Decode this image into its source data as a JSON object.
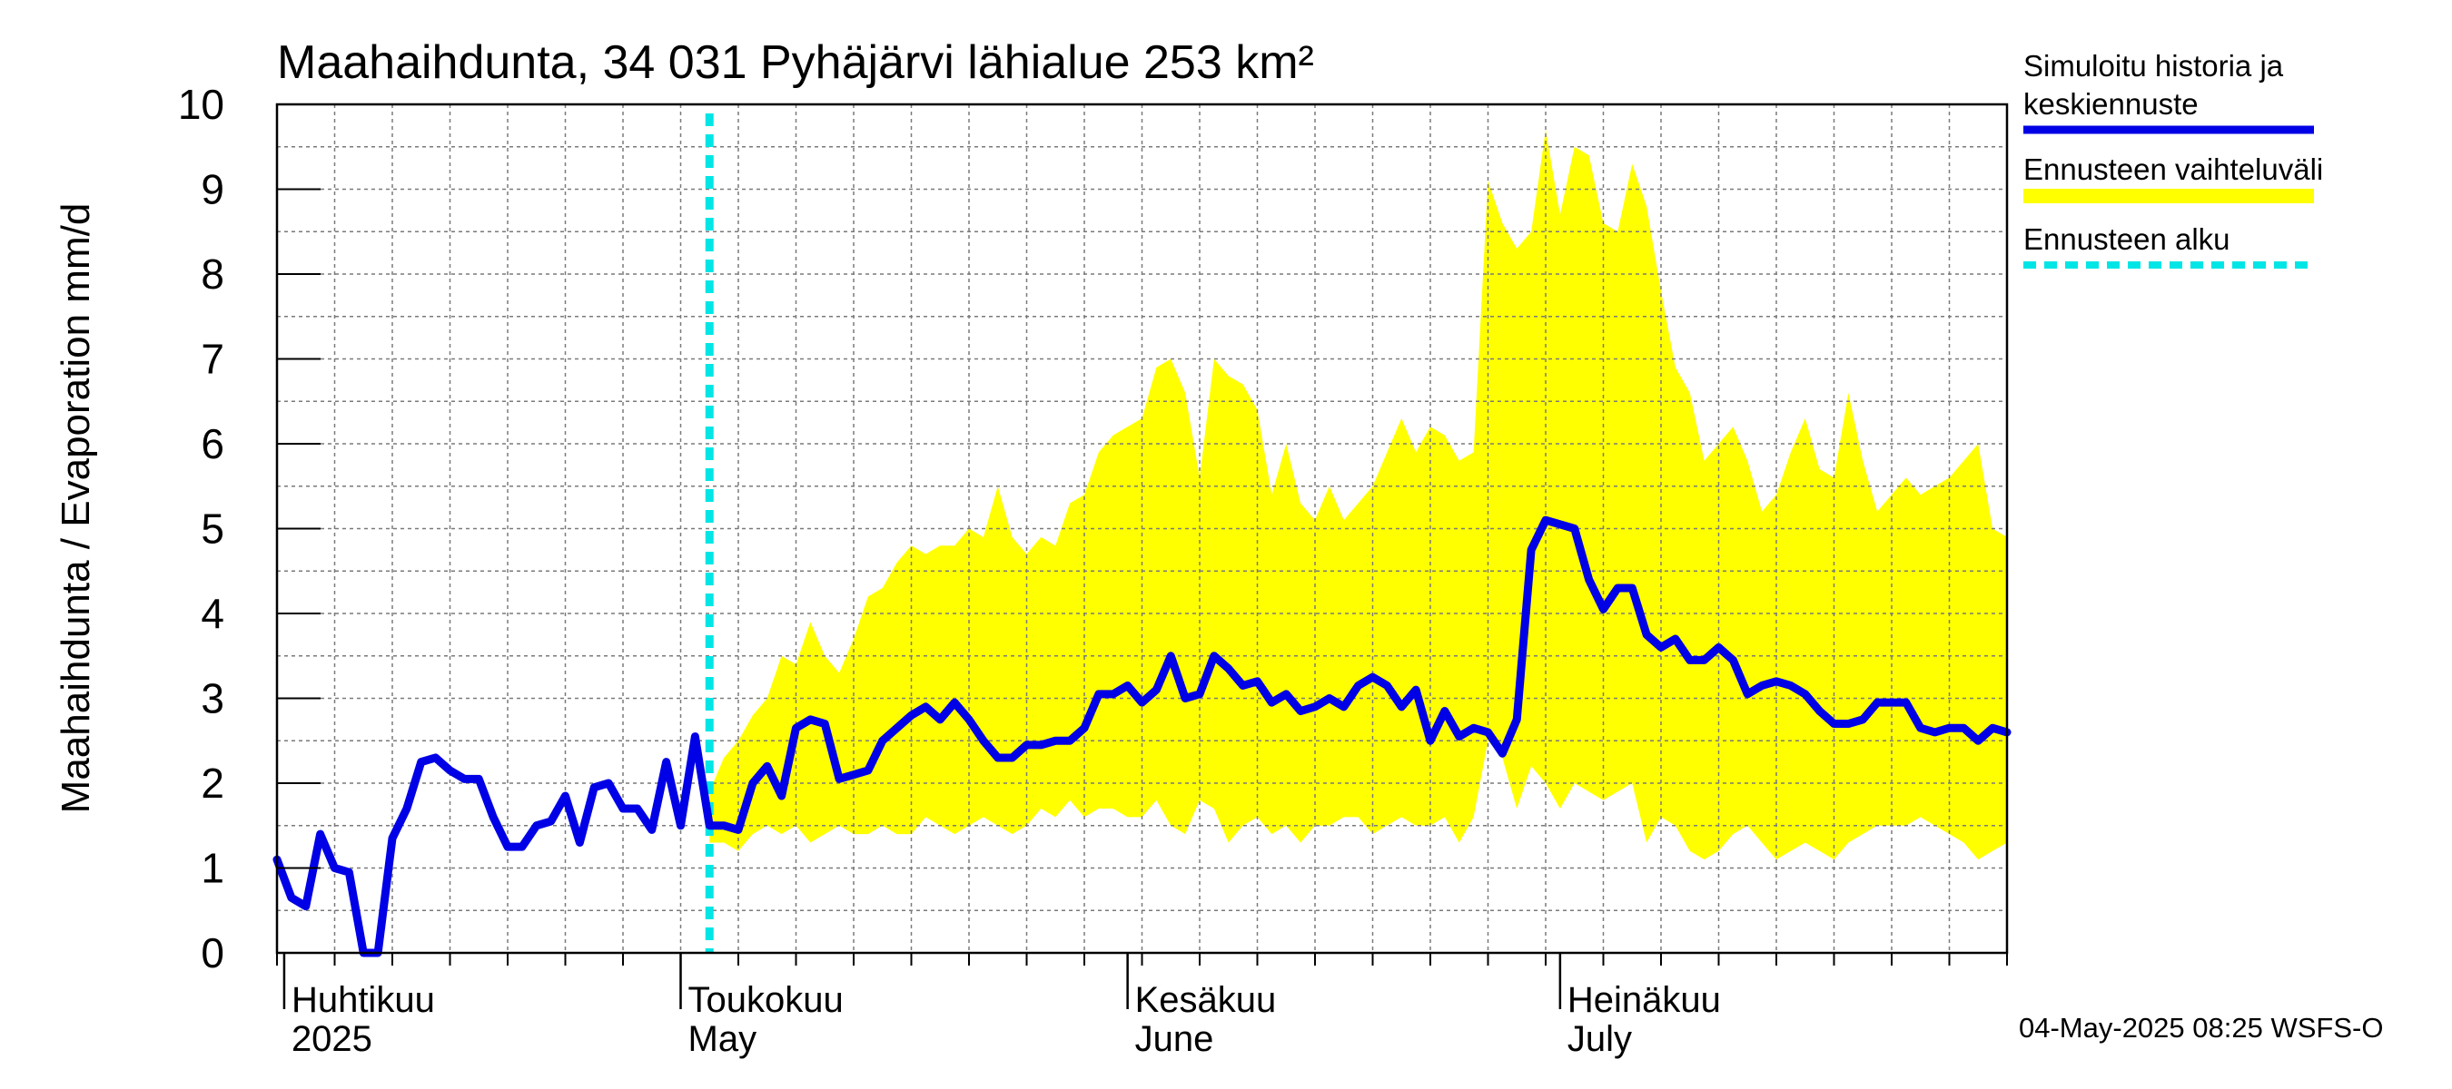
{
  "chart_data": {
    "type": "line",
    "title": "Maahaihdunta, 34 031 Pyhäjärvi lähialue 253 km²",
    "ylabel": "Maahaihdunta / Evaporation   mm/d",
    "ylim": [
      0,
      10
    ],
    "yticks": [
      "0",
      "1",
      "2",
      "3",
      "4",
      "5",
      "6",
      "7",
      "8",
      "9",
      "10"
    ],
    "x_range_days": [
      0,
      120
    ],
    "grid": true,
    "forecast_start_day": 30,
    "month_labels": [
      {
        "day": 0.5,
        "line1": "Huhtikuu",
        "line2": "2025"
      },
      {
        "day": 28,
        "line1": "Toukokuu",
        "line2": "May"
      },
      {
        "day": 59,
        "line1": "Kesäkuu",
        "line2": "June"
      },
      {
        "day": 89,
        "line1": "Heinäkuu",
        "line2": "July"
      }
    ],
    "series": [
      {
        "name": "Simuloitu historia ja keskiennuste",
        "color": "#0000e6",
        "x": [
          0,
          1,
          2,
          3,
          4,
          5,
          6,
          7,
          8,
          9,
          10,
          11,
          12,
          13,
          14,
          15,
          16,
          17,
          18,
          19,
          20,
          21,
          22,
          23,
          24,
          25,
          26,
          27,
          28,
          29,
          30,
          31,
          32,
          33,
          34,
          35,
          36,
          37,
          38,
          39,
          40,
          41,
          42,
          43,
          44,
          45,
          46,
          47,
          48,
          49,
          50,
          51,
          52,
          53,
          54,
          55,
          56,
          57,
          58,
          59,
          60,
          61,
          62,
          63,
          64,
          65,
          66,
          67,
          68,
          69,
          70,
          71,
          72,
          73,
          74,
          75,
          76,
          77,
          78,
          79,
          80,
          81,
          82,
          83,
          84,
          85,
          86,
          87,
          88,
          89,
          90,
          91,
          92,
          93,
          94,
          95,
          96,
          97,
          98,
          99,
          100,
          101,
          102,
          103,
          104,
          105,
          106,
          107,
          108,
          109,
          110,
          111,
          112,
          113,
          114,
          115,
          116,
          117,
          118,
          119,
          120
        ],
        "values": [
          1.1,
          0.65,
          0.55,
          1.4,
          1.0,
          0.95,
          0.0,
          0.0,
          1.35,
          1.7,
          2.25,
          2.3,
          2.15,
          2.05,
          2.05,
          1.6,
          1.25,
          1.25,
          1.5,
          1.55,
          1.85,
          1.3,
          1.95,
          2.0,
          1.7,
          1.7,
          1.45,
          2.25,
          1.5,
          2.55,
          1.5,
          1.5,
          1.45,
          2.0,
          2.2,
          1.85,
          2.65,
          2.75,
          2.7,
          2.05,
          2.1,
          2.15,
          2.5,
          2.65,
          2.8,
          2.9,
          2.75,
          2.95,
          2.75,
          2.5,
          2.3,
          2.3,
          2.45,
          2.45,
          2.5,
          2.5,
          2.65,
          3.05,
          3.05,
          3.15,
          2.95,
          3.1,
          3.5,
          3.0,
          3.05,
          3.5,
          3.35,
          3.15,
          3.2,
          2.95,
          3.05,
          2.85,
          2.9,
          3.0,
          2.9,
          3.15,
          3.25,
          3.15,
          2.9,
          3.1,
          2.5,
          2.85,
          2.55,
          2.65,
          2.6,
          2.35,
          2.75,
          4.75,
          5.1,
          5.05,
          5.0,
          4.4,
          4.05,
          4.3,
          4.3,
          3.75,
          3.6,
          3.7,
          3.45,
          3.45,
          3.6,
          3.45,
          3.05,
          3.15,
          3.2,
          3.15,
          3.05,
          2.85,
          2.7,
          2.7,
          2.75,
          2.95,
          2.95,
          2.95,
          2.65,
          2.6,
          2.65,
          2.65,
          2.5,
          2.65,
          2.6
        ]
      }
    ],
    "band": {
      "name": "Ennusteen vaihteluväli",
      "color": "#ffff00",
      "x": [
        30,
        31,
        32,
        33,
        34,
        35,
        36,
        37,
        38,
        39,
        40,
        41,
        42,
        43,
        44,
        45,
        46,
        47,
        48,
        49,
        50,
        51,
        52,
        53,
        54,
        55,
        56,
        57,
        58,
        59,
        60,
        61,
        62,
        63,
        64,
        65,
        66,
        67,
        68,
        69,
        70,
        71,
        72,
        73,
        74,
        75,
        76,
        77,
        78,
        79,
        80,
        81,
        82,
        83,
        84,
        85,
        86,
        87,
        88,
        89,
        90,
        91,
        92,
        93,
        94,
        95,
        96,
        97,
        98,
        99,
        100,
        101,
        102,
        103,
        104,
        105,
        106,
        107,
        108,
        109,
        110,
        111,
        112,
        113,
        114,
        115,
        116,
        117,
        118,
        119,
        120
      ],
      "upper": [
        1.9,
        2.3,
        2.5,
        2.8,
        3.0,
        3.5,
        3.4,
        3.9,
        3.5,
        3.3,
        3.7,
        4.2,
        4.3,
        4.6,
        4.8,
        4.7,
        4.8,
        4.8,
        5.0,
        4.9,
        5.5,
        4.9,
        4.7,
        4.9,
        4.8,
        5.3,
        5.4,
        5.9,
        6.1,
        6.2,
        6.3,
        6.9,
        7.0,
        6.6,
        5.6,
        7.0,
        6.8,
        6.7,
        6.4,
        5.4,
        6.0,
        5.3,
        5.1,
        5.5,
        5.1,
        5.3,
        5.5,
        5.9,
        6.3,
        5.9,
        6.2,
        6.1,
        5.8,
        5.9,
        9.1,
        8.6,
        8.3,
        8.5,
        9.7,
        8.7,
        9.5,
        9.4,
        8.6,
        8.5,
        9.3,
        8.8,
        7.8,
        6.9,
        6.6,
        5.8,
        6.0,
        6.2,
        5.8,
        5.2,
        5.4,
        5.9,
        6.3,
        5.7,
        5.6,
        6.6,
        5.8,
        5.2,
        5.4,
        5.6,
        5.4,
        5.5,
        5.6,
        5.8,
        6.0,
        5.0,
        4.9
      ],
      "lower": [
        1.3,
        1.3,
        1.2,
        1.4,
        1.5,
        1.4,
        1.5,
        1.3,
        1.4,
        1.5,
        1.4,
        1.4,
        1.5,
        1.4,
        1.4,
        1.6,
        1.5,
        1.4,
        1.5,
        1.6,
        1.5,
        1.4,
        1.5,
        1.7,
        1.6,
        1.8,
        1.6,
        1.7,
        1.7,
        1.6,
        1.6,
        1.8,
        1.5,
        1.4,
        1.8,
        1.7,
        1.3,
        1.5,
        1.6,
        1.4,
        1.5,
        1.3,
        1.5,
        1.5,
        1.6,
        1.6,
        1.4,
        1.5,
        1.6,
        1.5,
        1.5,
        1.6,
        1.3,
        1.6,
        2.5,
        2.3,
        1.7,
        2.2,
        2.0,
        1.7,
        2.0,
        1.9,
        1.8,
        1.9,
        2.0,
        1.3,
        1.6,
        1.5,
        1.2,
        1.1,
        1.2,
        1.4,
        1.5,
        1.3,
        1.1,
        1.2,
        1.3,
        1.2,
        1.1,
        1.3,
        1.4,
        1.5,
        1.5,
        1.5,
        1.6,
        1.5,
        1.4,
        1.3,
        1.1,
        1.2,
        1.3
      ]
    },
    "legend": {
      "placement": "top-right",
      "line1": "Simuloitu historia ja",
      "line2": "keskiennuste",
      "range_label": "Ennusteen vaihteluväli",
      "start_label": "Ennusteen alku",
      "start_color": "#00e5e5"
    },
    "footer": "04-May-2025 08:25 WSFS-O"
  }
}
